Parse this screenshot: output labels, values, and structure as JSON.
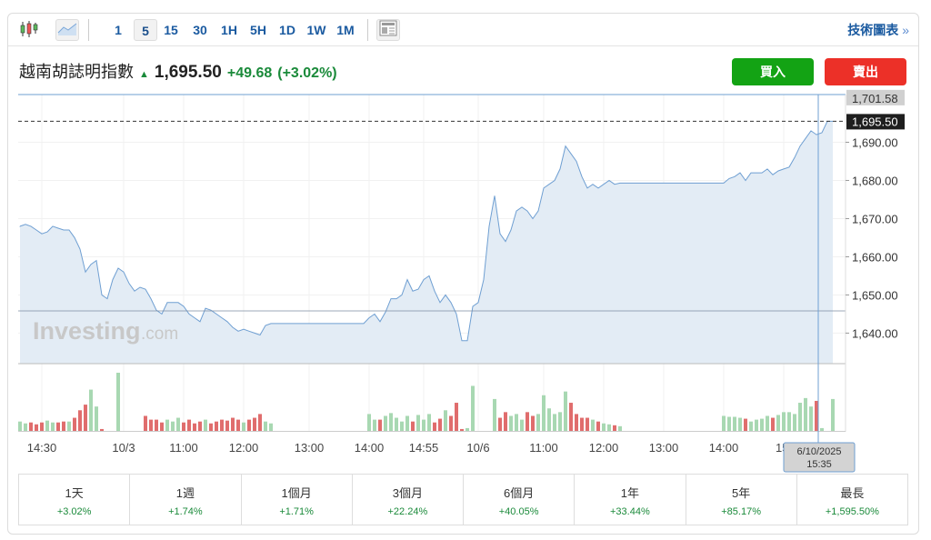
{
  "toolbar": {
    "candles_icon": "candlestick-icon",
    "area_icon": "area-chart-icon",
    "intervals": [
      "1",
      "5",
      "15",
      "30",
      "1H",
      "5H",
      "1D",
      "1W",
      "1M"
    ],
    "selected_interval": "5",
    "news_icon": "news-layout-icon",
    "technical_link": "技術圖表",
    "technical_arrow": "»"
  },
  "header": {
    "name": "越南胡誌明指數",
    "arrow": "▲",
    "price": "1,695.50",
    "change": "+49.68",
    "change_pct": "(+3.02%)",
    "buy": "買入",
    "sell": "賣出"
  },
  "colors": {
    "up": "#1a8a3a",
    "buy": "#13a314",
    "sell": "#ec3028",
    "line": "#6f9fd2",
    "fill": "#e3ecf5",
    "vol_up": "#a8d8b2",
    "vol_down": "#e06d6d"
  },
  "watermark": {
    "brand": "Investing",
    ".com": ".com"
  },
  "chart_data": {
    "type": "area",
    "ylim": [
      1632,
      1702.5
    ],
    "y_ticks": [
      1640,
      1650,
      1660,
      1670,
      1680,
      1690
    ],
    "y_tick_labels": [
      "1,640.00",
      "1,650.00",
      "1,660.00",
      "1,670.00",
      "1,680.00",
      "1,690.00"
    ],
    "crosshair_price_label": "1,701.58",
    "crosshair_price": 1701.58,
    "last_price_label": "1,695.50",
    "last_price": 1695.5,
    "prev_close": 1645.82,
    "x_labels": [
      {
        "i": 4,
        "t": "14:30"
      },
      {
        "i": 19,
        "t": "10/3"
      },
      {
        "i": 30,
        "t": "11:00"
      },
      {
        "i": 41,
        "t": "12:00"
      },
      {
        "i": 53,
        "t": "13:00"
      },
      {
        "i": 64,
        "t": "14:00"
      },
      {
        "i": 74,
        "t": "14:55"
      },
      {
        "i": 84,
        "t": "10/6"
      },
      {
        "i": 96,
        "t": "11:00"
      },
      {
        "i": 107,
        "t": "12:00"
      },
      {
        "i": 118,
        "t": "13:00"
      },
      {
        "i": 129,
        "t": "14:00"
      },
      {
        "i": 140,
        "t": "15:"
      }
    ],
    "crosshair_index": 147,
    "crosshair_date": "6/10/2025",
    "crosshair_time": "15:35",
    "price": [
      1668,
      1668.5,
      1668,
      1667,
      1666,
      1666.5,
      1668,
      1667.5,
      1667,
      1667,
      1665,
      1662,
      1656,
      1658,
      1659,
      1650,
      1649,
      1654,
      1657,
      1656,
      1653,
      1651,
      1652,
      1651.5,
      1649,
      1646,
      1645,
      1648,
      1648,
      1648,
      1647,
      1645,
      1644,
      1643,
      1646.5,
      1646,
      1645,
      1644,
      1643,
      1641.5,
      1640.5,
      1641,
      1640.5,
      1640,
      1639.5,
      1642,
      1642.5,
      1642.5,
      1642.5,
      1642.5,
      1642.5,
      1642.5,
      1642.5,
      1642.5,
      1642.5,
      1642.5,
      1642.5,
      1642.5,
      1642.5,
      1642.5,
      1642.5,
      1642.5,
      1642.5,
      1642.5,
      1644,
      1645,
      1643,
      1645.5,
      1649,
      1649,
      1650,
      1654,
      1651,
      1651.5,
      1654,
      1655,
      1651,
      1648,
      1650,
      1648,
      1645,
      1638,
      1638,
      1647,
      1648,
      1654,
      1668,
      1676,
      1666,
      1664,
      1667,
      1672,
      1673,
      1672,
      1670,
      1672,
      1678,
      1679,
      1680,
      1683,
      1689,
      1687,
      1685,
      1681,
      1678,
      1679,
      1678,
      1679,
      1680,
      1679,
      1679.3,
      1679.3,
      1679.3,
      1679.3,
      1679.3,
      1679.3,
      1679.3,
      1679.3,
      1679.3,
      1679.3,
      1679.3,
      1679.3,
      1679.3,
      1679.3,
      1679.3,
      1679.3,
      1679.3,
      1679.3,
      1679.3,
      1679.3,
      1680.5,
      1681,
      1682,
      1680,
      1682,
      1682,
      1682,
      1683,
      1681.5,
      1682.5,
      1683,
      1683.5,
      1686,
      1689,
      1691,
      1693,
      1692,
      1692.5,
      1695.5,
      1695.5
    ],
    "volume": [
      10,
      8,
      9,
      7,
      9,
      11,
      9,
      9,
      10,
      10,
      14,
      22,
      28,
      44,
      26,
      2,
      0,
      0,
      62,
      0,
      0,
      0,
      0,
      16,
      12,
      12,
      9,
      12,
      10,
      14,
      9,
      12,
      8,
      10,
      12,
      8,
      10,
      12,
      11,
      14,
      12,
      9,
      12,
      14,
      18,
      10,
      8,
      0,
      0,
      0,
      0,
      0,
      0,
      0,
      0,
      0,
      0,
      0,
      0,
      0,
      0,
      0,
      0,
      0,
      18,
      12,
      12,
      16,
      19,
      14,
      10,
      16,
      10,
      17,
      12,
      18,
      9,
      13,
      22,
      16,
      30,
      2,
      3,
      48,
      0,
      0,
      0,
      34,
      14,
      20,
      16,
      18,
      12,
      20,
      16,
      18,
      38,
      24,
      18,
      20,
      42,
      30,
      18,
      14,
      14,
      12,
      10,
      8,
      7,
      6,
      5,
      0,
      0,
      0,
      0,
      0,
      0,
      0,
      0,
      0,
      0,
      0,
      0,
      0,
      0,
      0,
      0,
      0,
      0,
      16,
      15,
      15,
      14,
      13,
      10,
      12,
      13,
      16,
      14,
      17,
      20,
      20,
      18,
      30,
      35,
      26,
      32,
      3,
      0,
      34
    ]
  },
  "performance": [
    {
      "label": "1天",
      "value": "+3.02%"
    },
    {
      "label": "1週",
      "value": "+1.74%"
    },
    {
      "label": "1個月",
      "value": "+1.71%"
    },
    {
      "label": "3個月",
      "value": "+22.24%"
    },
    {
      "label": "6個月",
      "value": "+40.05%"
    },
    {
      "label": "1年",
      "value": "+33.44%"
    },
    {
      "label": "5年",
      "value": "+85.17%"
    },
    {
      "label": "最長",
      "value": "+1,595.50%"
    }
  ]
}
